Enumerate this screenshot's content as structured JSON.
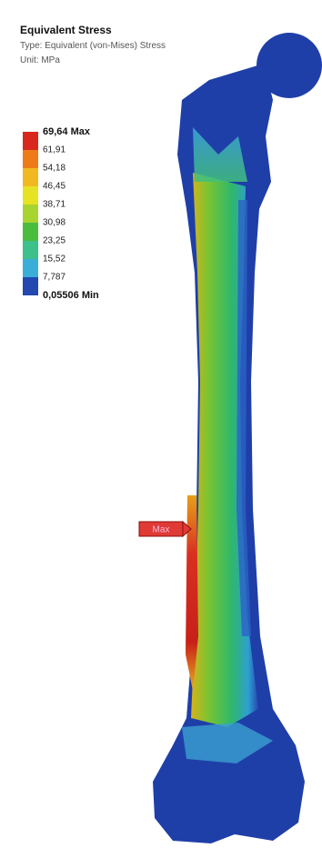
{
  "header": {
    "title": "Equivalent Stress",
    "type": "Type: Equivalent (von-Mises) Stress",
    "unit": "Unit: MPa"
  },
  "legend": {
    "labels": [
      "69,64 Max",
      "61,91",
      "54,18",
      "46,45",
      "38,71",
      "30,98",
      "23,25",
      "15,52",
      "7,787",
      "0,05506 Min"
    ]
  },
  "probe": {
    "label": "Max"
  }
}
